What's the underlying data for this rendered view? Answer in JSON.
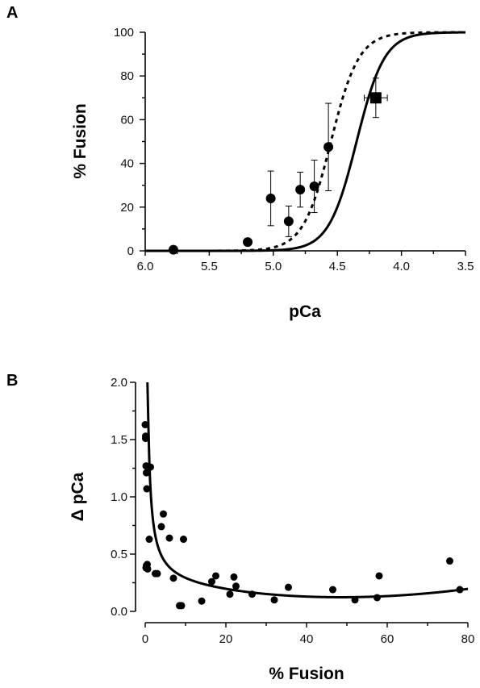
{
  "chart_data": [
    {
      "type": "line",
      "panel": "A",
      "xlabel": "pCa",
      "ylabel": "% Fusion",
      "xlim": [
        6.0,
        3.5
      ],
      "ylim": [
        0,
        100
      ],
      "x_reversed": true,
      "xticks": [
        6.0,
        5.5,
        5.0,
        4.5,
        4.0,
        3.5
      ],
      "xtick_labels": [
        "6.0",
        "5.5",
        "5.0",
        "4.5",
        "4.0",
        "3.5"
      ],
      "yticks": [
        0,
        20,
        40,
        60,
        80,
        100
      ],
      "ytick_labels": [
        "0",
        "20",
        "40",
        "60",
        "80",
        "100"
      ],
      "grid": false,
      "series": [
        {
          "style": "circle-markers",
          "x": [
            5.78,
            5.2,
            5.02,
            4.88,
            4.79,
            4.68,
            4.57
          ],
          "y": [
            0.5,
            4,
            24,
            13.5,
            28,
            29.5,
            47.5
          ],
          "err": [
            0,
            0,
            12.5,
            7,
            8,
            12,
            20
          ]
        },
        {
          "style": "square-marker",
          "x": [
            4.2
          ],
          "y": [
            70
          ],
          "err": [
            9
          ],
          "xerr": [
            0.09
          ]
        },
        {
          "style": "solid-curve",
          "function": "hill",
          "ec50_pCa": 4.35,
          "n": 4
        },
        {
          "style": "dashed-curve",
          "function": "hill",
          "ec50_pCa": 4.55,
          "n": 4
        }
      ]
    },
    {
      "type": "scatter",
      "panel": "B",
      "xlabel": "% Fusion",
      "ylabel": "Δ pCa",
      "xlim": [
        0,
        80
      ],
      "ylim": [
        0,
        2.0
      ],
      "xticks": [
        0,
        20,
        40,
        60,
        80
      ],
      "xtick_labels": [
        "0",
        "20",
        "40",
        "60",
        "80"
      ],
      "yticks": [
        0.0,
        0.5,
        1.0,
        1.5,
        2.0
      ],
      "ytick_labels": [
        "0.0",
        "0.5",
        "1.0",
        "1.5",
        "2.0"
      ],
      "grid": false,
      "series": [
        {
          "style": "circle-markers",
          "x": [
            0,
            0.1,
            0.1,
            0.2,
            0.3,
            0.4,
            0.5,
            0.6,
            0.2,
            0.3,
            1.0,
            1.3,
            2.5,
            3.0,
            4.0,
            4.5,
            6.0,
            7.0,
            8.5,
            9.5,
            9.0,
            14.0,
            16.5,
            17.5,
            21.0,
            22.0,
            22.5,
            26.5,
            32.0,
            35.5,
            46.5,
            52.0,
            57.5,
            58.0,
            75.5,
            78.0
          ],
          "y": [
            1.63,
            1.53,
            1.51,
            1.27,
            1.21,
            1.07,
            0.41,
            0.37,
            0.38,
            0.4,
            0.63,
            1.26,
            0.33,
            0.33,
            0.74,
            0.85,
            0.64,
            0.29,
            0.05,
            0.63,
            0.05,
            0.09,
            0.26,
            0.31,
            0.15,
            0.3,
            0.22,
            0.15,
            0.1,
            0.21,
            0.19,
            0.1,
            0.12,
            0.31,
            0.44,
            0.19
          ]
        },
        {
          "style": "solid-curve",
          "function": "fit"
        }
      ]
    }
  ]
}
